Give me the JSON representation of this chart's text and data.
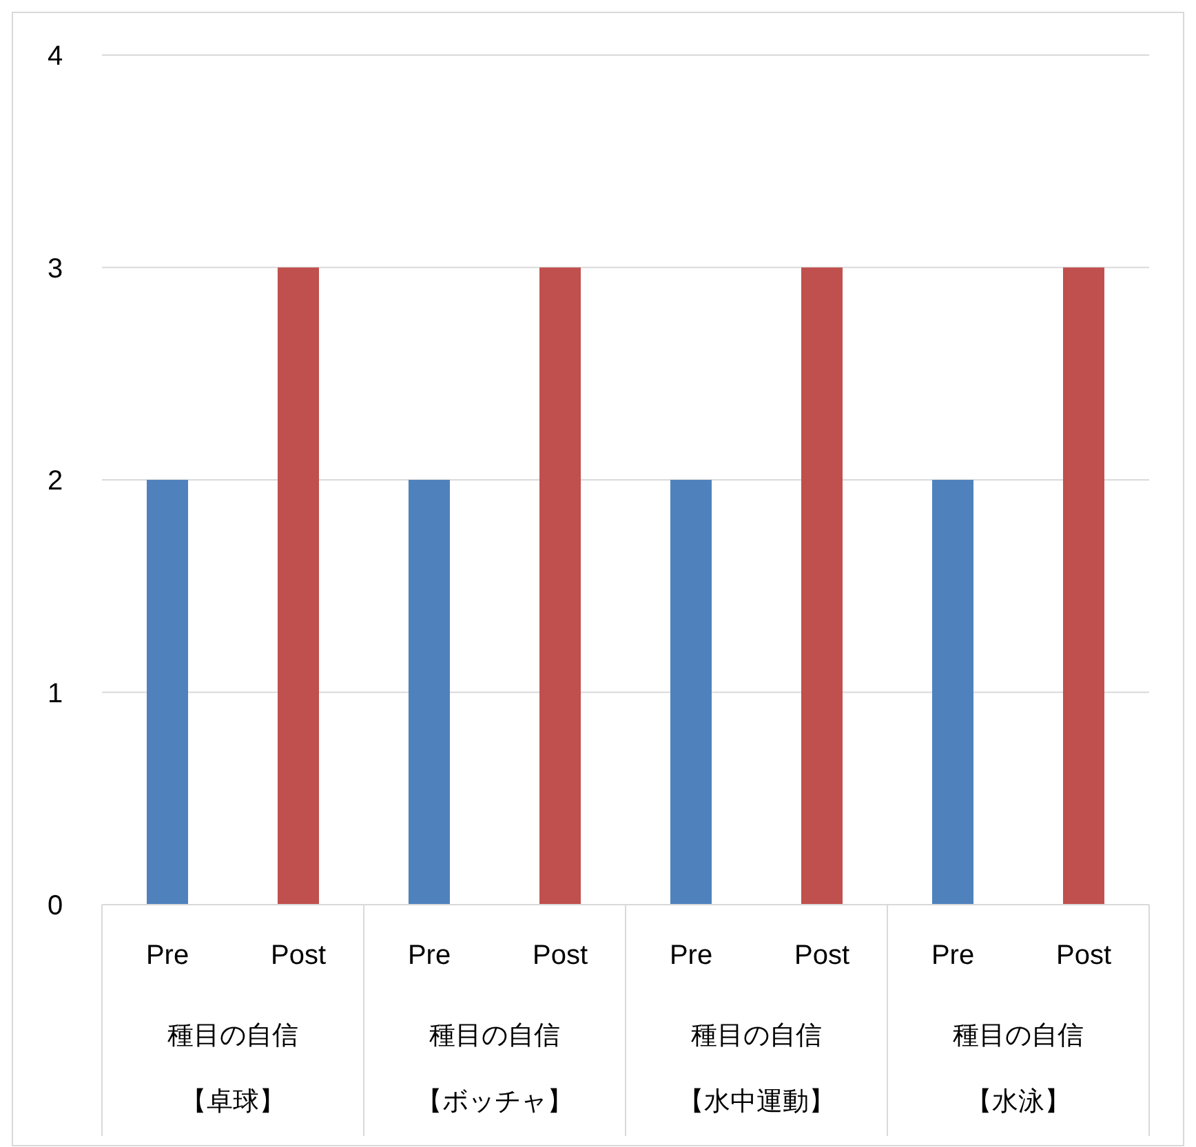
{
  "chart_data": {
    "type": "bar",
    "categories": [
      "Pre",
      "Post",
      "Pre",
      "Post",
      "Pre",
      "Post",
      "Pre",
      "Post"
    ],
    "values": [
      2,
      3,
      2,
      3,
      2,
      3,
      2,
      3
    ],
    "colors": [
      "#4f81bd",
      "#c0504d",
      "#4f81bd",
      "#c0504d",
      "#4f81bd",
      "#c0504d",
      "#4f81bd",
      "#c0504d"
    ],
    "ylim": [
      0,
      4
    ],
    "yticks": [
      0,
      1,
      2,
      3,
      4
    ],
    "grid": "y",
    "annotations": [
      "種目の自信",
      "【卓球】",
      "種目の自信",
      "【ボッチャ】",
      "種目の自信",
      "【水中運動】",
      "種目の自信",
      "【水泳】"
    ]
  }
}
